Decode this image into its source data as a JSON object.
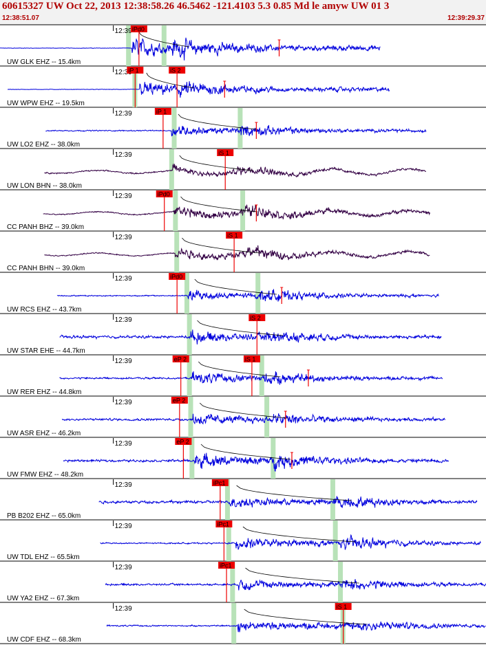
{
  "header": {
    "title": "60615327 UW Oct 22, 2013 12:38:58.26   46.5462 -121.4103  5.3 0.85 Md le amyw UW 01   3",
    "time_start": "12:38:51.07",
    "time_end": "12:39:29.37"
  },
  "colors": {
    "trace_blue": "#0000dd",
    "trace_purple": "#330044",
    "pick_red": "#ee0000",
    "window_green": "#b8e2b8",
    "header_text": "#b00000",
    "grid": "#000000"
  },
  "chart_data": {
    "type": "line",
    "xlim_seconds": [
      0,
      38.3
    ],
    "minute_tick_label": "12:39",
    "minute_tick_time_s": 8.93,
    "traces": [
      {
        "label": "UW GLK EHZ -- 15.4km",
        "color": "trace_blue",
        "noise_start_s": 0.0,
        "trace_end_s": 30.0,
        "p_time_s": 10.4,
        "s_time_s": 13.6,
        "amp": 0.9,
        "pre_noise": 0.02,
        "picks": [
          {
            "text": "iPd0",
            "time_s": 10.3
          }
        ],
        "windows_s": [
          10.1,
          12.9
        ],
        "markers_s": [
          22.0
        ]
      },
      {
        "label": "UW WPW EHZ -- 19.5km",
        "color": "trace_blue",
        "noise_start_s": 0.6,
        "trace_end_s": 30.7,
        "p_time_s": 11.0,
        "s_time_s": 14.0,
        "amp": 0.75,
        "pre_noise": 0.02,
        "picks": [
          {
            "text": "iP 1",
            "time_s": 10.0
          },
          {
            "text": "iS 2",
            "time_s": 13.3
          }
        ],
        "windows_s": [
          10.6
        ],
        "markers_s": [
          17.7
        ]
      },
      {
        "label": "UW LO2 EHZ -- 38.0km",
        "color": "trace_blue",
        "noise_start_s": 3.6,
        "trace_end_s": 33.6,
        "p_time_s": 13.5,
        "s_time_s": 18.9,
        "amp": 0.55,
        "pre_noise": 0.05,
        "picks": [
          {
            "text": "iP 1",
            "time_s": 12.2
          }
        ],
        "windows_s": [
          13.7,
          18.9
        ],
        "markers_s": [
          20.2
        ]
      },
      {
        "label": "UW LON BHN -- 38.0km",
        "color": "trace_purple",
        "noise_start_s": 3.5,
        "trace_end_s": 33.6,
        "p_time_s": 13.6,
        "s_time_s": 18.6,
        "amp": 0.45,
        "pre_noise": 0.06,
        "picks": [
          {
            "text": "iS 1",
            "time_s": 17.1
          }
        ],
        "windows_s": [
          13.5
        ],
        "markers_s": []
      },
      {
        "label": "CC PANH BHZ -- 39.0km",
        "color": "trace_purple",
        "noise_start_s": 3.4,
        "trace_end_s": 33.9,
        "p_time_s": 13.7,
        "s_time_s": 19.0,
        "amp": 0.6,
        "pre_noise": 0.05,
        "picks": [
          {
            "text": "iPd0",
            "time_s": 12.3
          }
        ],
        "windows_s": [
          13.8,
          19.1
        ],
        "markers_s": [
          20.2
        ]
      },
      {
        "label": "CC PANH BHN -- 39.0km",
        "color": "trace_purple",
        "noise_start_s": 3.5,
        "trace_end_s": 33.9,
        "p_time_s": 13.8,
        "s_time_s": 19.2,
        "amp": 0.55,
        "pre_noise": 0.05,
        "picks": [
          {
            "text": "iS 1",
            "time_s": 17.8
          }
        ],
        "windows_s": [
          13.9
        ],
        "markers_s": []
      },
      {
        "label": "UW RCS EHZ -- 43.7km",
        "color": "trace_blue",
        "noise_start_s": 4.5,
        "trace_end_s": 34.6,
        "p_time_s": 14.8,
        "s_time_s": 20.5,
        "amp": 0.55,
        "pre_noise": 0.05,
        "picks": [
          {
            "text": "iPd0",
            "time_s": 13.3
          }
        ],
        "windows_s": [
          14.7,
          20.3
        ],
        "markers_s": [
          22.2
        ]
      },
      {
        "label": "UW STAR EHE -- 44.7km",
        "color": "trace_blue",
        "noise_start_s": 4.7,
        "trace_end_s": 34.8,
        "p_time_s": 15.0,
        "s_time_s": 21.0,
        "amp": 0.6,
        "pre_noise": 0.12,
        "picks": [
          {
            "text": "iS 2",
            "time_s": 19.6
          }
        ],
        "windows_s": [
          14.9
        ],
        "markers_s": []
      },
      {
        "label": "UW RER EHZ -- 44.8km",
        "color": "trace_blue",
        "noise_start_s": 4.7,
        "trace_end_s": 34.9,
        "p_time_s": 15.1,
        "s_time_s": 20.8,
        "amp": 0.6,
        "pre_noise": 0.08,
        "picks": [
          {
            "text": "eP 2",
            "time_s": 13.6
          },
          {
            "text": "iS 1",
            "time_s": 19.2
          }
        ],
        "windows_s": [
          14.9,
          20.6
        ],
        "markers_s": [
          24.3
        ]
      },
      {
        "label": "UW ASR EHZ -- 46.2km",
        "color": "trace_blue",
        "noise_start_s": 4.9,
        "trace_end_s": 35.1,
        "p_time_s": 15.2,
        "s_time_s": 21.4,
        "amp": 0.6,
        "pre_noise": 0.1,
        "picks": [
          {
            "text": "eP 2",
            "time_s": 13.5
          }
        ],
        "windows_s": [
          15.0,
          21.0
        ],
        "markers_s": [
          22.5
        ]
      },
      {
        "label": "UW FMW EHZ -- 48.2km",
        "color": "trace_blue",
        "noise_start_s": 5.0,
        "trace_end_s": 35.4,
        "p_time_s": 15.3,
        "s_time_s": 21.6,
        "amp": 0.7,
        "pre_noise": 0.1,
        "picks": [
          {
            "text": "eP 2",
            "time_s": 13.8
          }
        ],
        "windows_s": [
          15.1,
          21.5
        ],
        "markers_s": [
          23.0
        ]
      },
      {
        "label": "PB B202 EHZ -- 65.0km",
        "color": "trace_blue",
        "noise_start_s": 7.8,
        "trace_end_s": 37.6,
        "p_time_s": 18.1,
        "s_time_s": 26.4,
        "amp": 0.6,
        "pre_noise": 0.12,
        "picks": [
          {
            "text": "iPc1",
            "time_s": 16.7
          }
        ],
        "windows_s": [
          17.9,
          26.2
        ],
        "markers_s": []
      },
      {
        "label": "UW TDL EHZ -- 65.5km",
        "color": "trace_blue",
        "noise_start_s": 7.9,
        "trace_end_s": 37.9,
        "p_time_s": 18.6,
        "s_time_s": 26.7,
        "amp": 0.6,
        "pre_noise": 0.06,
        "picks": [
          {
            "text": "iPc1",
            "time_s": 17.0
          }
        ],
        "windows_s": [
          18.0,
          26.4
        ],
        "markers_s": []
      },
      {
        "label": "UW YA2 EHZ -- 67.3km",
        "color": "trace_blue",
        "noise_start_s": 8.3,
        "trace_end_s": 38.3,
        "p_time_s": 18.8,
        "s_time_s": 27.0,
        "amp": 0.55,
        "pre_noise": 0.08,
        "picks": [
          {
            "text": "iPc1",
            "time_s": 17.2
          }
        ],
        "windows_s": [
          18.3,
          26.8
        ],
        "markers_s": []
      },
      {
        "label": "UW CDF EHZ -- 68.3km",
        "color": "trace_blue",
        "noise_start_s": 8.4,
        "trace_end_s": 38.3,
        "p_time_s": 18.7,
        "s_time_s": 27.6,
        "amp": 0.6,
        "pre_noise": 0.06,
        "picks": [
          {
            "text": "iS 1",
            "time_s": 26.4
          }
        ],
        "windows_s": [
          18.4,
          27.0
        ],
        "markers_s": []
      }
    ]
  }
}
